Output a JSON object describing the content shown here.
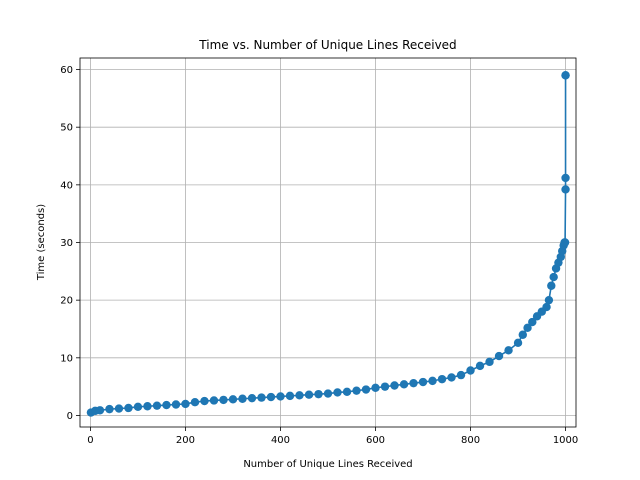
{
  "chart_data": {
    "type": "line",
    "title": "Time vs. Number of Unique Lines Received",
    "xlabel": "Number of Unique Lines Received",
    "ylabel": "Time (seconds)",
    "xlim": [
      -22,
      1022
    ],
    "ylim": [
      -2,
      62
    ],
    "xticks": [
      0,
      200,
      400,
      600,
      800,
      1000
    ],
    "yticks": [
      0,
      10,
      20,
      30,
      40,
      50,
      60
    ],
    "grid": true,
    "legend": "none",
    "color": "#1f77b4",
    "series": [
      {
        "x": [
          1,
          10,
          20,
          40,
          60,
          80,
          100,
          120,
          140,
          160,
          180,
          200,
          220,
          240,
          260,
          280,
          300,
          320,
          340,
          360,
          380,
          400,
          420,
          440,
          460,
          480,
          500,
          520,
          540,
          560,
          580,
          600,
          620,
          640,
          660,
          680,
          700,
          720,
          740,
          760,
          780,
          800,
          820,
          840,
          860,
          880,
          900,
          910,
          920,
          930,
          940,
          950,
          960,
          965,
          970,
          975,
          980,
          985,
          990,
          993,
          996,
          998,
          999,
          1000,
          1000,
          1000,
          1000
        ],
        "y": [
          0.5,
          0.8,
          0.9,
          1.1,
          1.2,
          1.3,
          1.5,
          1.6,
          1.7,
          1.8,
          1.9,
          2.0,
          2.3,
          2.5,
          2.6,
          2.7,
          2.8,
          2.9,
          3.0,
          3.1,
          3.2,
          3.3,
          3.4,
          3.5,
          3.6,
          3.7,
          3.8,
          4.0,
          4.1,
          4.3,
          4.5,
          4.8,
          5.0,
          5.2,
          5.4,
          5.6,
          5.8,
          6.0,
          6.3,
          6.6,
          7.0,
          7.8,
          8.6,
          9.3,
          10.3,
          11.3,
          12.6,
          14.0,
          15.2,
          16.2,
          17.2,
          18.0,
          18.8,
          20.0,
          22.5,
          24.0,
          25.5,
          26.5,
          27.5,
          28.5,
          29.5,
          30.0,
          30.0,
          39.2,
          41.2,
          59.0,
          59.0
        ]
      }
    ]
  }
}
